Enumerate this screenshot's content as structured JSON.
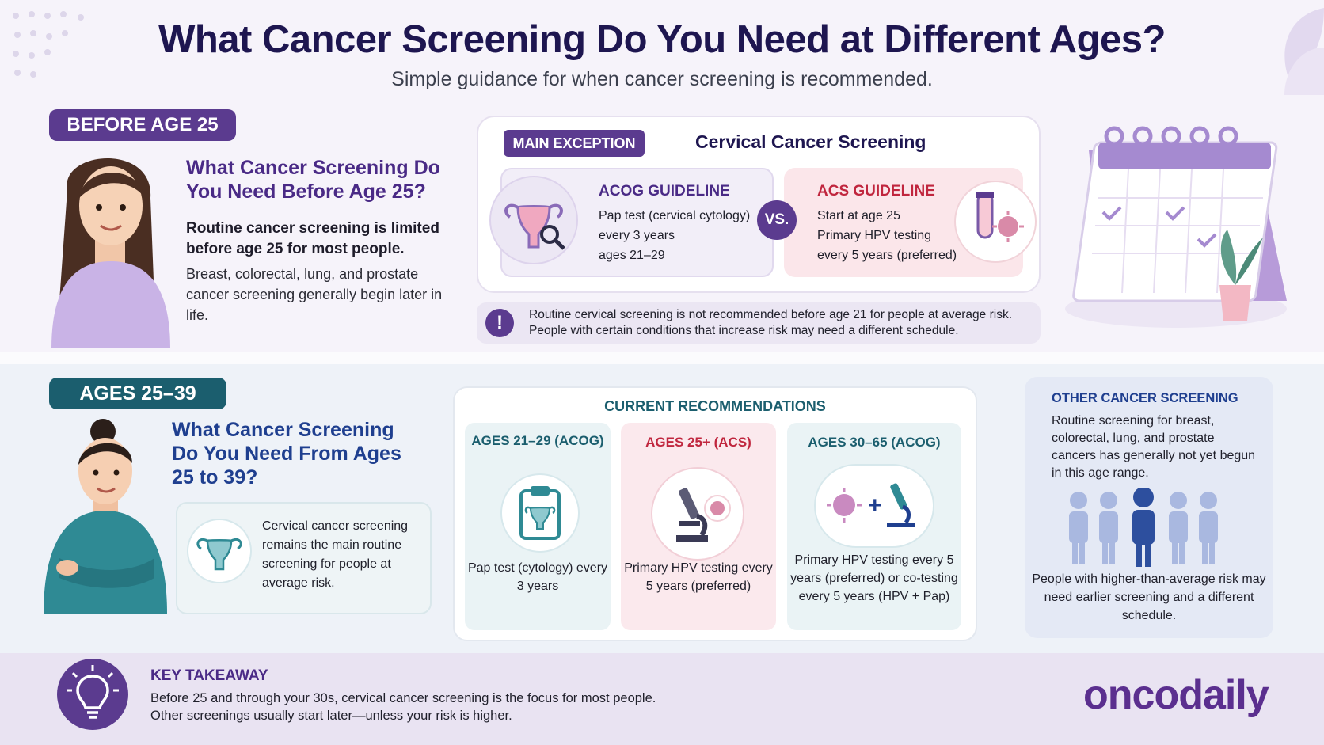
{
  "header": {
    "title": "What Cancer Screening Do You Need at Different Ages?",
    "subtitle": "Simple guidance for when cancer screening is recommended."
  },
  "before25": {
    "pill": "BEFORE AGE 25",
    "question": "What Cancer Screening Do You Need Before Age 25?",
    "lead": "Routine cancer screening is limited before age 25 for most people.",
    "body": "Breast, colorectal, lung, and prostate cancer screening generally begin later in life.",
    "exception_tag": "MAIN EXCEPTION",
    "exception_title": "Cervical Cancer Screening",
    "acog": {
      "head": "ACOG GUIDELINE",
      "line1": "Pap test (cervical cytology)",
      "line2": "every 3 years",
      "line3": "ages 21–29"
    },
    "vs": "VS.",
    "acs": {
      "head": "ACS GUIDELINE",
      "line1": "Start at age 25",
      "line2": "Primary HPV testing",
      "line3": "every 5 years (preferred)"
    },
    "note_icon": "!",
    "note_line1": "Routine cervical screening is not recommended before age 21 for people at average risk.",
    "note_line2": "People with certain conditions that increase risk may need a different schedule."
  },
  "ages25_39": {
    "pill": "AGES 25–39",
    "question": "What Cancer Screening Do You Need From Ages 25 to 39?",
    "cervical_note": "Cervical cancer screening remains the main routine screening for people at average risk.",
    "rec_title": "CURRENT RECOMMENDATIONS",
    "col1": {
      "head": "AGES 21–29 (ACOG)",
      "body": "Pap test (cytology) every 3 years"
    },
    "col2": {
      "head": "AGES 25+ (ACS)",
      "body": "Primary HPV testing every 5 years (preferred)"
    },
    "col3": {
      "head": "AGES 30–65 (ACOG)",
      "body": "Primary HPV testing every 5 years (preferred) or co-testing every 5 years (HPV + Pap)"
    },
    "other": {
      "title": "OTHER CANCER SCREENING",
      "body": "Routine screening for breast, colorectal, lung, and prostate cancers has generally not yet begun in this age range.",
      "foot": "People with higher-than-average risk may need earlier screening and a different schedule."
    }
  },
  "footer": {
    "key_title": "KEY TAKEAWAY",
    "key_line1": "Before 25 and through your 30s, cervical cancer screening is the focus for most people.",
    "key_line2": "Other screenings usually start later—unless your risk is higher.",
    "brand": "oncodaily"
  },
  "colors": {
    "purple": "#5b3b8f",
    "navy": "#1e1650",
    "teal": "#1b5e6e",
    "red": "#c0263e"
  },
  "icons": [
    "uterus-icon",
    "magnifier-icon",
    "test-tube-icon",
    "virus-icon",
    "calendar-icon",
    "clipboard-icon",
    "microscope-icon",
    "people-icon",
    "lightbulb-icon",
    "alert-icon"
  ]
}
